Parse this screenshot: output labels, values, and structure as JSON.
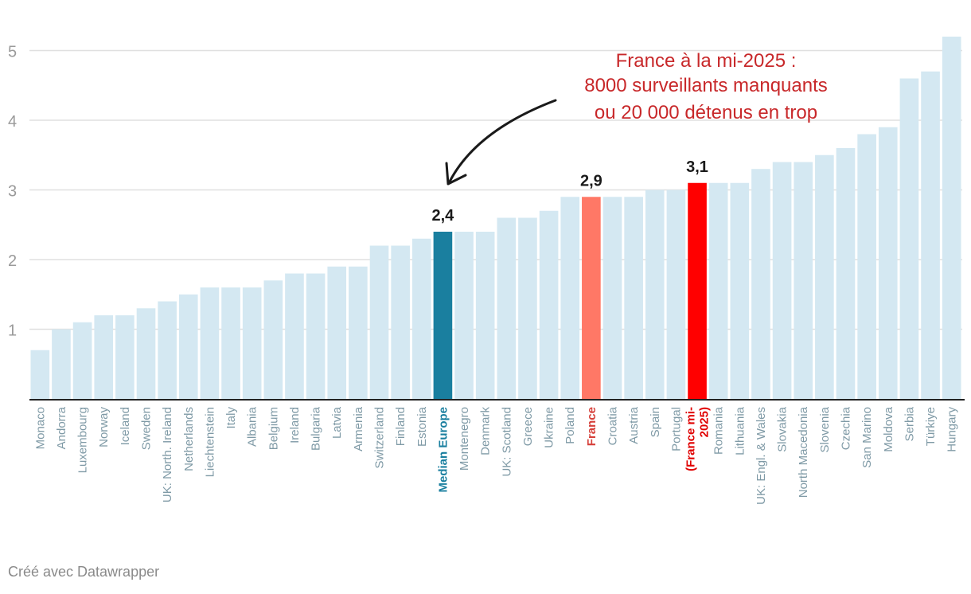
{
  "chart_data": {
    "type": "bar",
    "title": "",
    "xlabel": "",
    "ylabel": "",
    "ylim": [
      0,
      5.2
    ],
    "yticks": [
      "1",
      "2",
      "3",
      "4",
      "5"
    ],
    "ytick_values": [
      1,
      2,
      3,
      4,
      5
    ],
    "grid": true,
    "categories": [
      "Monaco",
      "Andorra",
      "Luxembourg",
      "Norway",
      "Iceland",
      "Sweden",
      "UK: North. Ireland",
      "Netherlands",
      "Liechtenstein",
      "Italy",
      "Albania",
      "Belgium",
      "Ireland",
      "Bulgaria",
      "Latvia",
      "Armenia",
      "Switzerland",
      "Finland",
      "Estonia",
      "Median Europe",
      "Montenegro",
      "Denmark",
      "UK: Scotland",
      "Greece",
      "Ukraine",
      "Poland",
      "France",
      "Croatia",
      "Austria",
      "Spain",
      "Portugal",
      "(France mi-2025)",
      "Romania",
      "Lithuania",
      "UK: Engl. & Wales",
      "Slovakia",
      "North Macedonia",
      "Slovenia",
      "Czechia",
      "San Marino",
      "Moldova",
      "Serbia",
      "Türkiye",
      "Hungary"
    ],
    "category_label_lines": {
      "(France mi-2025)": [
        "(France mi-",
        "2025)"
      ]
    },
    "values": [
      0.7,
      1.0,
      1.1,
      1.2,
      1.2,
      1.3,
      1.4,
      1.5,
      1.6,
      1.6,
      1.6,
      1.7,
      1.8,
      1.8,
      1.9,
      1.9,
      2.2,
      2.2,
      2.3,
      2.4,
      2.4,
      2.4,
      2.6,
      2.6,
      2.7,
      2.9,
      2.9,
      2.9,
      2.9,
      3.0,
      3.0,
      3.1,
      3.1,
      3.1,
      3.3,
      3.4,
      3.4,
      3.5,
      3.6,
      3.8,
      3.9,
      4.6,
      4.7,
      5.2
    ],
    "highlights": {
      "Median Europe": {
        "color": "#1a7f9f",
        "label_color": "#1a7f9f",
        "value_label": "2,4"
      },
      "France": {
        "color": "#ff7866",
        "label_color": "#d6403a",
        "value_label": "2,9"
      },
      "(France mi-2025)": {
        "color": "#ff0000",
        "label_color": "#e00000",
        "value_label": "3,1"
      }
    },
    "colors": {
      "default_bar": "#d4e8f2",
      "grid": "#e0e0e0",
      "axis": "#222222",
      "annotation": "#c8282a",
      "arrow": "#1a1a1a"
    },
    "annotation": {
      "lines": [
        "France à la mi-2025 :",
        "8000 surveillants manquants",
        "ou 20 000 détenus en trop"
      ],
      "target": "Median Europe"
    }
  },
  "footer": {
    "credit": "Créé avec Datawrapper"
  }
}
